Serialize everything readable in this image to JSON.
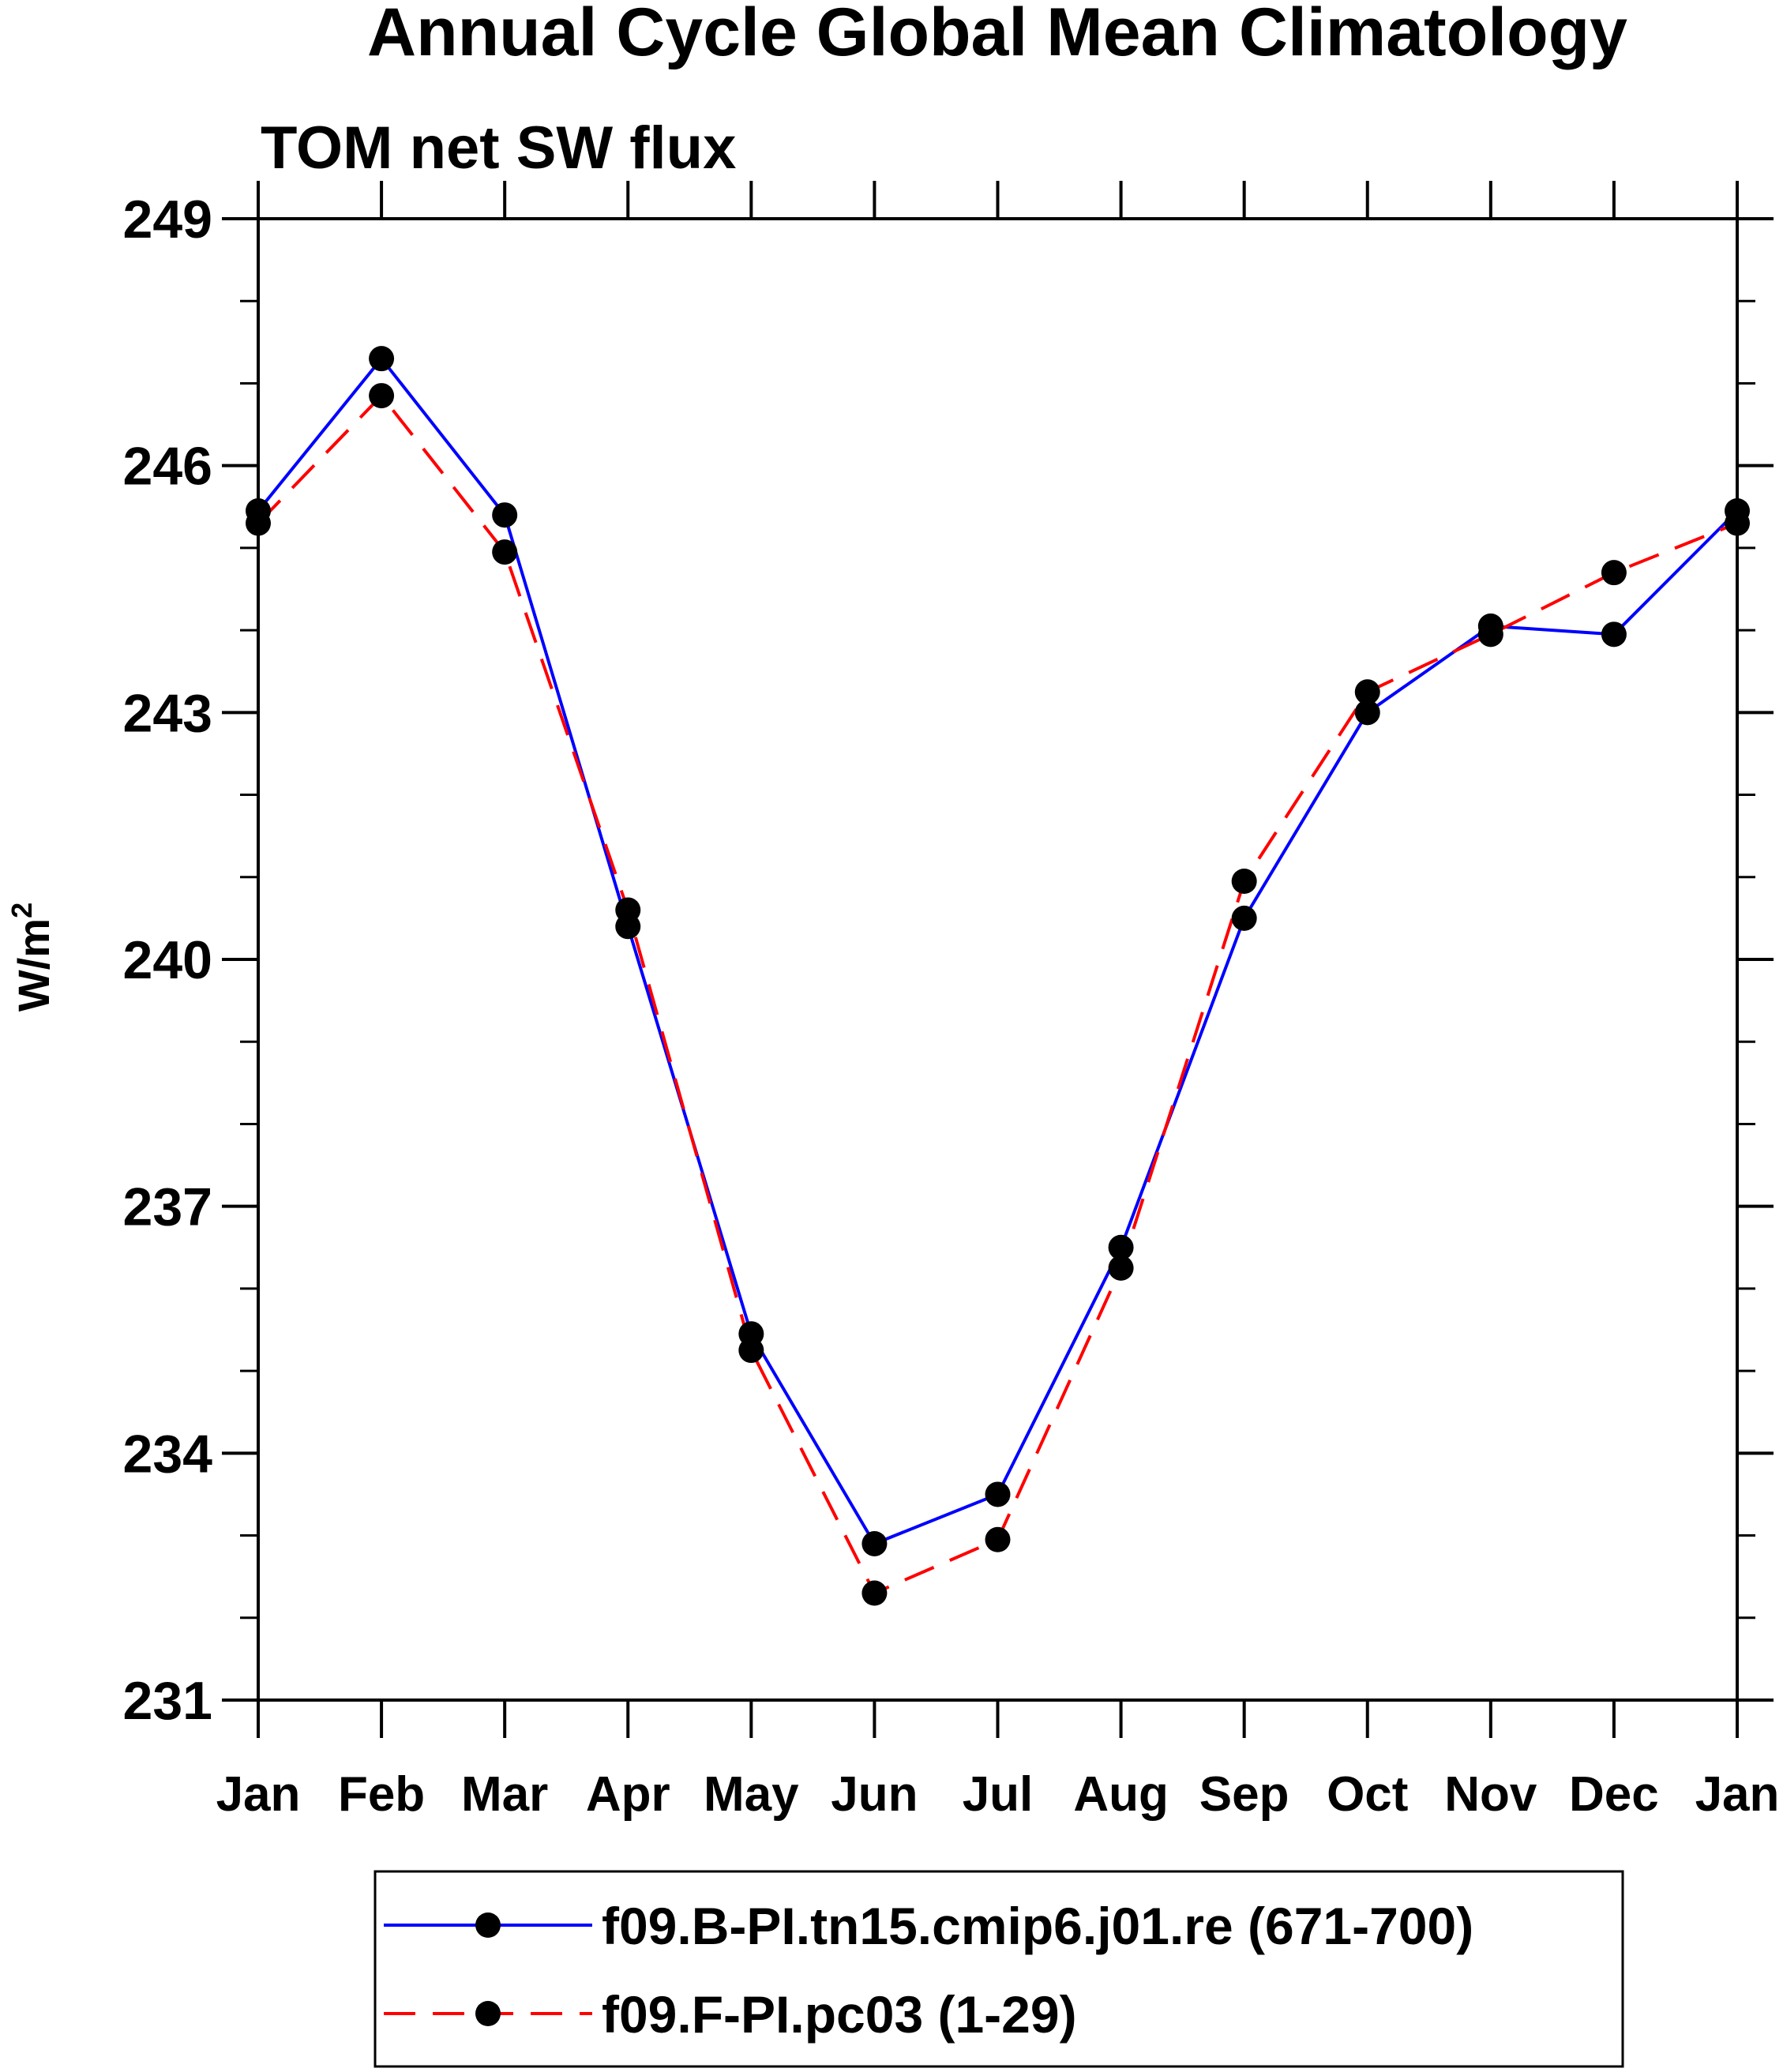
{
  "chart_data": {
    "type": "line",
    "title": "Annual Cycle Global Mean Climatology",
    "subtitle": "TOM net SW flux",
    "ylabel": "W/m",
    "ylabel_superscript": "2",
    "xlabel": "",
    "categories": [
      "Jan",
      "Feb",
      "Mar",
      "Apr",
      "May",
      "Jun",
      "Jul",
      "Aug",
      "Sep",
      "Oct",
      "Nov",
      "Dec",
      "Jan"
    ],
    "ylim": [
      231,
      249
    ],
    "yticks": [
      231,
      234,
      237,
      240,
      243,
      246,
      249
    ],
    "grid": false,
    "legend_position": "bottom",
    "series": [
      {
        "name": "f09.B-PI.tn15.cmip6.j01.re (671-700)",
        "color": "#0000ff",
        "dash": "solid",
        "marker": "filled-circle",
        "values": [
          245.45,
          247.3,
          245.4,
          240.4,
          235.45,
          232.9,
          233.5,
          236.5,
          240.5,
          243.0,
          244.05,
          243.95,
          245.45
        ]
      },
      {
        "name": "f09.F-PI.pc03 (1-29)",
        "color": "#ff0000",
        "dash": "dashed",
        "marker": "filled-circle",
        "values": [
          245.3,
          246.85,
          244.95,
          240.6,
          235.25,
          232.3,
          232.95,
          236.25,
          240.95,
          243.25,
          243.95,
          244.7,
          245.3
        ]
      }
    ]
  }
}
